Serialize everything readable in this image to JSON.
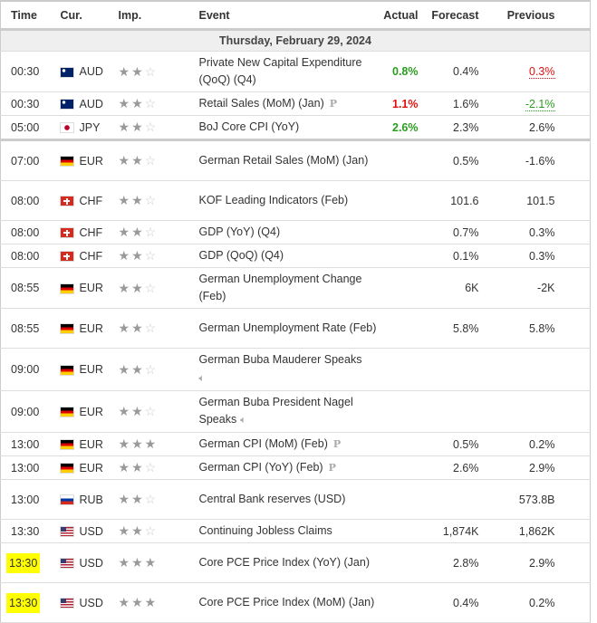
{
  "headers": {
    "time": "Time",
    "cur": "Cur.",
    "imp": "Imp.",
    "event": "Event",
    "actual": "Actual",
    "forecast": "Forecast",
    "previous": "Previous"
  },
  "date": "Thursday, February 29, 2024",
  "flags": {
    "AUD": "australia-flag",
    "JPY": "japan-flag",
    "EUR": "germany-flag",
    "CHF": "switzerland-flag",
    "RUB": "russia-flag",
    "USD": "usa-flag"
  },
  "rows": [
    {
      "time": "00:30",
      "cur": "AUD",
      "imp": 2,
      "event": "Private New Capital Expenditure (QoQ) (Q4)",
      "actual": "0.8%",
      "actual_color": "green",
      "forecast": "0.4%",
      "previous": "0.3%",
      "previous_color": "red"
    },
    {
      "time": "00:30",
      "cur": "AUD",
      "imp": 2,
      "event": "Retail Sales (MoM) (Jan)",
      "prelim": "P",
      "actual": "1.1%",
      "actual_color": "red",
      "forecast": "1.6%",
      "previous": "-2.1%",
      "previous_color": "green"
    },
    {
      "time": "05:00",
      "cur": "JPY",
      "imp": 2,
      "event": "BoJ Core CPI (YoY)",
      "actual": "2.6%",
      "actual_color": "green",
      "forecast": "2.3%",
      "previous": "2.6%",
      "thick": true
    },
    {
      "time": "07:00",
      "cur": "EUR",
      "imp": 2,
      "event": "German Retail Sales (MoM) (Jan)",
      "actual": "",
      "forecast": "0.5%",
      "previous": "-1.6%"
    },
    {
      "time": "08:00",
      "cur": "CHF",
      "imp": 2,
      "event": "KOF Leading Indicators (Feb)",
      "actual": "",
      "forecast": "101.6",
      "previous": "101.5"
    },
    {
      "time": "08:00",
      "cur": "CHF",
      "imp": 2,
      "event": "GDP (YoY) (Q4)",
      "actual": "",
      "forecast": "0.7%",
      "previous": "0.3%"
    },
    {
      "time": "08:00",
      "cur": "CHF",
      "imp": 2,
      "event": "GDP (QoQ) (Q4)",
      "actual": "",
      "forecast": "0.1%",
      "previous": "0.3%"
    },
    {
      "time": "08:55",
      "cur": "EUR",
      "imp": 2,
      "event": "German Unemployment Change (Feb)",
      "actual": "",
      "forecast": "6K",
      "previous": "-2K"
    },
    {
      "time": "08:55",
      "cur": "EUR",
      "imp": 2,
      "event": "German Unemployment Rate (Feb)",
      "actual": "",
      "forecast": "5.8%",
      "previous": "5.8%"
    },
    {
      "time": "09:00",
      "cur": "EUR",
      "imp": 2,
      "event": "German Buba Mauderer Speaks",
      "speech": true,
      "speech_break": true,
      "actual": "",
      "forecast": "",
      "previous": ""
    },
    {
      "time": "09:00",
      "cur": "EUR",
      "imp": 2,
      "event": "German Buba President Nagel Speaks",
      "speech": true,
      "actual": "",
      "forecast": "",
      "previous": ""
    },
    {
      "time": "13:00",
      "cur": "EUR",
      "imp": 3,
      "event": "German CPI (MoM) (Feb)",
      "prelim": "P",
      "actual": "",
      "forecast": "0.5%",
      "previous": "0.2%"
    },
    {
      "time": "13:00",
      "cur": "EUR",
      "imp": 2,
      "event": "German CPI (YoY) (Feb)",
      "prelim": "P",
      "actual": "",
      "forecast": "2.6%",
      "previous": "2.9%"
    },
    {
      "time": "13:00",
      "cur": "RUB",
      "imp": 2,
      "event": "Central Bank reserves (USD)",
      "actual": "",
      "forecast": "",
      "previous": "573.8B"
    },
    {
      "time": "13:30",
      "cur": "USD",
      "imp": 2,
      "event": "Continuing Jobless Claims",
      "actual": "",
      "forecast": "1,874K",
      "previous": "1,862K"
    },
    {
      "time": "13:30",
      "cur": "USD",
      "imp": 3,
      "event": "Core PCE Price Index (YoY) (Jan)",
      "highlight": true,
      "actual": "",
      "forecast": "2.8%",
      "previous": "2.9%"
    },
    {
      "time": "13:30",
      "cur": "USD",
      "imp": 3,
      "event": "Core PCE Price Index (MoM) (Jan)",
      "highlight": true,
      "actual": "",
      "forecast": "0.4%",
      "previous": "0.2%"
    }
  ]
}
